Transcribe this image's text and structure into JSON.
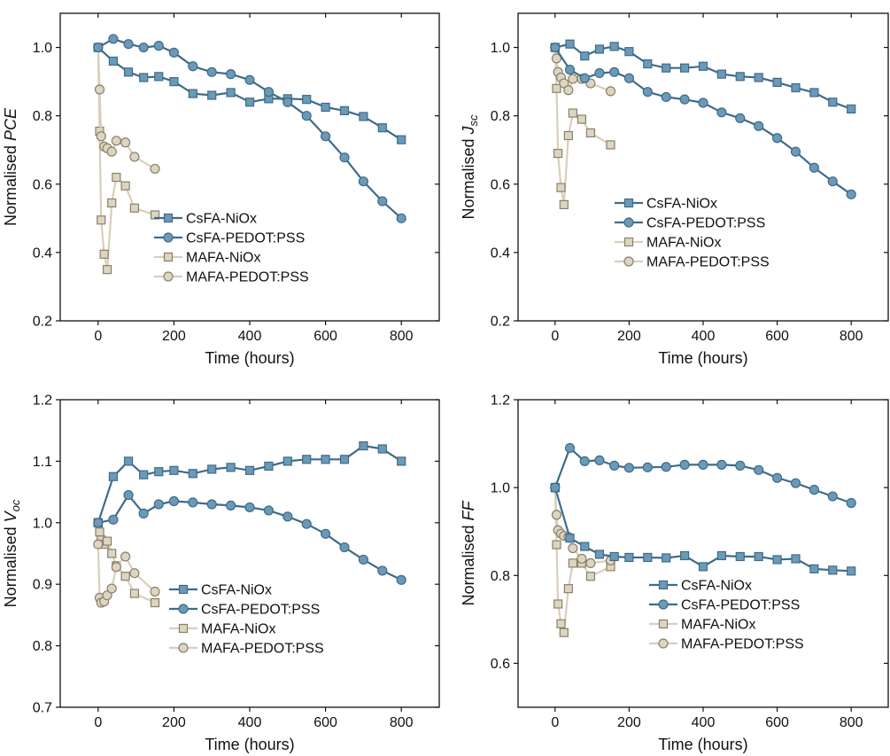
{
  "colors": {
    "csfa": "#3f6b88",
    "csfa_marker": "#6a9ab8",
    "mafa_line": "#d8cfba",
    "mafa_marker": "#ddd5c2",
    "mafa_edge": "#8a8068"
  },
  "chart_data": [
    {
      "type": "line",
      "xlabel": "Time (hours)",
      "ylabel": {
        "prefix": "Normalised ",
        "main": "PCE",
        "sub": ""
      },
      "xlim": [
        -100,
        900
      ],
      "ylim": [
        0.2,
        1.1
      ],
      "xticks": [
        0,
        200,
        400,
        600,
        800
      ],
      "yticks": [
        0.2,
        0.4,
        0.6,
        0.8,
        1.0
      ],
      "ytick_labels": [
        "0.2",
        "0.4",
        "0.6",
        "0.8",
        "1.0"
      ],
      "grid": false,
      "legend": "bottom-left",
      "series": [
        {
          "name": "CsFA-NiOx",
          "marker": "square",
          "x": [
            0,
            40,
            80,
            120,
            160,
            200,
            250,
            300,
            350,
            400,
            450,
            500,
            550,
            600,
            650,
            700,
            750,
            800
          ],
          "y": [
            1.0,
            0.96,
            0.928,
            0.912,
            0.915,
            0.9,
            0.865,
            0.86,
            0.868,
            0.84,
            0.85,
            0.85,
            0.848,
            0.825,
            0.815,
            0.798,
            0.765,
            0.73
          ]
        },
        {
          "name": "CsFA-PEDOT:PSS",
          "marker": "circle",
          "x": [
            0,
            40,
            80,
            120,
            160,
            200,
            250,
            300,
            350,
            400,
            450,
            500,
            550,
            600,
            650,
            700,
            750,
            800
          ],
          "y": [
            1.0,
            1.025,
            1.01,
            1.0,
            1.005,
            0.985,
            0.945,
            0.928,
            0.922,
            0.905,
            0.87,
            0.84,
            0.8,
            0.74,
            0.678,
            0.608,
            0.55,
            0.5
          ]
        },
        {
          "name": "MAFA-NiOx",
          "marker": "square",
          "x": [
            0,
            4,
            8,
            16,
            24,
            36,
            48,
            72,
            96,
            150
          ],
          "y": [
            1.0,
            0.755,
            0.495,
            0.395,
            0.35,
            0.545,
            0.62,
            0.595,
            0.53,
            0.51
          ]
        },
        {
          "name": "MAFA-PEDOT:PSS",
          "marker": "circle",
          "x": [
            0,
            4,
            8,
            16,
            24,
            36,
            48,
            72,
            96,
            150
          ],
          "y": [
            1.0,
            0.877,
            0.74,
            0.71,
            0.705,
            0.695,
            0.727,
            0.722,
            0.68,
            0.645
          ]
        }
      ]
    },
    {
      "type": "line",
      "xlabel": "Time (hours)",
      "ylabel": {
        "prefix": "Normalised ",
        "main": "J",
        "sub": "sc"
      },
      "xlim": [
        -100,
        900
      ],
      "ylim": [
        0.2,
        1.1
      ],
      "xticks": [
        0,
        200,
        400,
        600,
        800
      ],
      "yticks": [
        0.2,
        0.4,
        0.6,
        0.8,
        1.0
      ],
      "ytick_labels": [
        "0.2",
        "0.4",
        "0.6",
        "0.8",
        "1.0"
      ],
      "grid": false,
      "legend": "middle-right",
      "series": [
        {
          "name": "CsFA-NiOx",
          "marker": "square",
          "x": [
            0,
            40,
            80,
            120,
            160,
            200,
            250,
            300,
            350,
            400,
            450,
            500,
            550,
            600,
            650,
            700,
            750,
            800
          ],
          "y": [
            1.0,
            1.01,
            0.975,
            0.995,
            1.003,
            0.988,
            0.952,
            0.94,
            0.94,
            0.945,
            0.922,
            0.915,
            0.912,
            0.898,
            0.882,
            0.868,
            0.84,
            0.82
          ]
        },
        {
          "name": "CsFA-PEDOT:PSS",
          "marker": "circle",
          "x": [
            0,
            40,
            80,
            120,
            160,
            200,
            250,
            300,
            350,
            400,
            450,
            500,
            550,
            600,
            650,
            700,
            750,
            800
          ],
          "y": [
            1.0,
            0.935,
            0.91,
            0.925,
            0.928,
            0.91,
            0.87,
            0.855,
            0.848,
            0.838,
            0.81,
            0.793,
            0.77,
            0.735,
            0.695,
            0.648,
            0.608,
            0.57
          ]
        },
        {
          "name": "MAFA-NiOx",
          "marker": "square",
          "x": [
            0,
            4,
            8,
            16,
            24,
            36,
            48,
            72,
            96,
            150
          ],
          "y": [
            1.0,
            0.88,
            0.69,
            0.59,
            0.54,
            0.742,
            0.808,
            0.79,
            0.75,
            0.715
          ]
        },
        {
          "name": "MAFA-PEDOT:PSS",
          "marker": "circle",
          "x": [
            0,
            4,
            8,
            16,
            24,
            36,
            48,
            72,
            96,
            150
          ],
          "y": [
            1.0,
            0.968,
            0.928,
            0.912,
            0.895,
            0.875,
            0.908,
            0.908,
            0.895,
            0.872
          ]
        }
      ]
    },
    {
      "type": "line",
      "xlabel": "Time (hours)",
      "ylabel": {
        "prefix": "Normalised ",
        "main": "V",
        "sub": "oc"
      },
      "xlim": [
        -100,
        900
      ],
      "ylim": [
        0.7,
        1.2
      ],
      "xticks": [
        0,
        200,
        400,
        600,
        800
      ],
      "yticks": [
        0.7,
        0.8,
        0.9,
        1.0,
        1.1,
        1.2
      ],
      "ytick_labels": [
        "0.7",
        "0.8",
        "0.9",
        "1.0",
        "1.1",
        "1.2"
      ],
      "grid": false,
      "legend": "bottom-center",
      "series": [
        {
          "name": "CsFA-NiOx",
          "marker": "square",
          "x": [
            0,
            40,
            80,
            120,
            160,
            200,
            250,
            300,
            350,
            400,
            450,
            500,
            550,
            600,
            650,
            700,
            750,
            800
          ],
          "y": [
            1.0,
            1.075,
            1.1,
            1.078,
            1.083,
            1.085,
            1.08,
            1.087,
            1.09,
            1.085,
            1.092,
            1.1,
            1.103,
            1.103,
            1.103,
            1.125,
            1.12,
            1.1
          ]
        },
        {
          "name": "CsFA-PEDOT:PSS",
          "marker": "circle",
          "x": [
            0,
            40,
            80,
            120,
            160,
            200,
            250,
            300,
            350,
            400,
            450,
            500,
            550,
            600,
            650,
            700,
            750,
            800
          ],
          "y": [
            1.0,
            1.005,
            1.045,
            1.015,
            1.03,
            1.035,
            1.033,
            1.03,
            1.028,
            1.025,
            1.02,
            1.01,
            0.998,
            0.982,
            0.96,
            0.94,
            0.922,
            0.907
          ]
        },
        {
          "name": "MAFA-NiOx",
          "marker": "square",
          "x": [
            0,
            4,
            8,
            16,
            24,
            36,
            48,
            72,
            96,
            150
          ],
          "y": [
            1.0,
            0.985,
            0.972,
            0.965,
            0.97,
            0.95,
            0.93,
            0.913,
            0.885,
            0.87
          ]
        },
        {
          "name": "MAFA-PEDOT:PSS",
          "marker": "circle",
          "x": [
            0,
            4,
            8,
            16,
            24,
            36,
            48,
            72,
            96,
            150
          ],
          "y": [
            0.965,
            0.878,
            0.87,
            0.872,
            0.882,
            0.893,
            0.928,
            0.945,
            0.918,
            0.888
          ]
        }
      ]
    },
    {
      "type": "line",
      "xlabel": "Time (hours)",
      "ylabel": {
        "prefix": "Normalised ",
        "main": "FF",
        "sub": ""
      },
      "xlim": [
        -100,
        900
      ],
      "ylim": [
        0.5,
        1.2
      ],
      "xticks": [
        0,
        200,
        400,
        600,
        800
      ],
      "yticks": [
        0.6,
        0.8,
        1.0,
        1.2
      ],
      "ytick_labels": [
        "0.6",
        "0.8",
        "1.0",
        "1.2"
      ],
      "grid": false,
      "legend": "bottom-center",
      "series": [
        {
          "name": "CsFA-NiOx",
          "marker": "square",
          "x": [
            0,
            40,
            80,
            120,
            160,
            200,
            250,
            300,
            350,
            400,
            450,
            500,
            550,
            600,
            650,
            700,
            750,
            800
          ],
          "y": [
            1.0,
            0.885,
            0.866,
            0.848,
            0.843,
            0.841,
            0.841,
            0.84,
            0.845,
            0.82,
            0.845,
            0.843,
            0.843,
            0.836,
            0.838,
            0.815,
            0.812,
            0.81
          ]
        },
        {
          "name": "CsFA-PEDOT:PSS",
          "marker": "circle",
          "x": [
            0,
            40,
            80,
            120,
            160,
            200,
            250,
            300,
            350,
            400,
            450,
            500,
            550,
            600,
            650,
            700,
            750,
            800
          ],
          "y": [
            1.0,
            1.09,
            1.06,
            1.062,
            1.05,
            1.045,
            1.046,
            1.047,
            1.052,
            1.052,
            1.052,
            1.05,
            1.04,
            1.022,
            1.01,
            0.995,
            0.98,
            0.965
          ]
        },
        {
          "name": "MAFA-NiOx",
          "marker": "square",
          "x": [
            0,
            4,
            8,
            16,
            24,
            36,
            48,
            72,
            96,
            150
          ],
          "y": [
            1.0,
            0.87,
            0.735,
            0.69,
            0.67,
            0.77,
            0.828,
            0.828,
            0.798,
            0.82
          ]
        },
        {
          "name": "MAFA-PEDOT:PSS",
          "marker": "circle",
          "x": [
            0,
            4,
            8,
            16,
            24,
            36,
            48,
            72,
            96,
            150
          ],
          "y": [
            1.0,
            0.938,
            0.903,
            0.895,
            0.89,
            0.888,
            0.862,
            0.838,
            0.828,
            0.834
          ]
        }
      ]
    }
  ]
}
